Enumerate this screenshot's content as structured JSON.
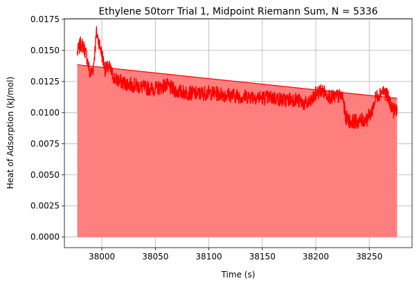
{
  "chart_data": {
    "type": "area",
    "title": "Ethylene 50torr Trial 1, Midpoint Riemann Sum, N = 5336",
    "xlabel": "Time (s)",
    "ylabel": "Heat of Adsorption (kJ/mol)",
    "xlim": [
      37965,
      38290
    ],
    "ylim": [
      -0.00085,
      0.01755
    ],
    "xticks": [
      38000,
      38050,
      38100,
      38150,
      38200,
      38250
    ],
    "xtick_labels": [
      "38000",
      "38050",
      "38100",
      "38150",
      "38200",
      "38250"
    ],
    "yticks": [
      0.0,
      0.0025,
      0.005,
      0.0075,
      0.01,
      0.0125,
      0.015,
      0.0175
    ],
    "ytick_labels": [
      "0.0000",
      "0.0025",
      "0.0050",
      "0.0075",
      "0.0100",
      "0.0125",
      "0.0150",
      "0.0175"
    ],
    "grid": true,
    "series": [
      {
        "kind": "fit-area",
        "color": "#ff0000",
        "fill_color": "#ff7f7f",
        "x": [
          37977,
          38276
        ],
        "y": [
          0.01385,
          0.01115
        ]
      },
      {
        "kind": "noisy-line",
        "color": "#ff0000",
        "x": [
          37977,
          37980,
          37983,
          37986,
          37989,
          37992,
          37995,
          37997,
          38000,
          38003,
          38007,
          38012,
          38020,
          38030,
          38040,
          38050,
          38060,
          38070,
          38080,
          38090,
          38100,
          38110,
          38120,
          38130,
          38140,
          38150,
          38160,
          38170,
          38180,
          38190,
          38195,
          38200,
          38205,
          38210,
          38215,
          38220,
          38225,
          38228,
          38232,
          38240,
          38248,
          38252,
          38256,
          38262,
          38266,
          38270,
          38273,
          38276
        ],
        "y": [
          0.0148,
          0.0155,
          0.0153,
          0.0145,
          0.013,
          0.0136,
          0.0164,
          0.0158,
          0.0147,
          0.0135,
          0.0136,
          0.0127,
          0.0124,
          0.0122,
          0.012,
          0.0119,
          0.0122,
          0.0117,
          0.0116,
          0.0115,
          0.0116,
          0.0115,
          0.0114,
          0.0113,
          0.0113,
          0.0112,
          0.0112,
          0.011,
          0.0111,
          0.0107,
          0.0108,
          0.0115,
          0.0118,
          0.0115,
          0.0112,
          0.0113,
          0.0113,
          0.0096,
          0.0093,
          0.0093,
          0.0095,
          0.01,
          0.0112,
          0.0118,
          0.0115,
          0.0107,
          0.0101,
          0.0104
        ]
      }
    ]
  }
}
